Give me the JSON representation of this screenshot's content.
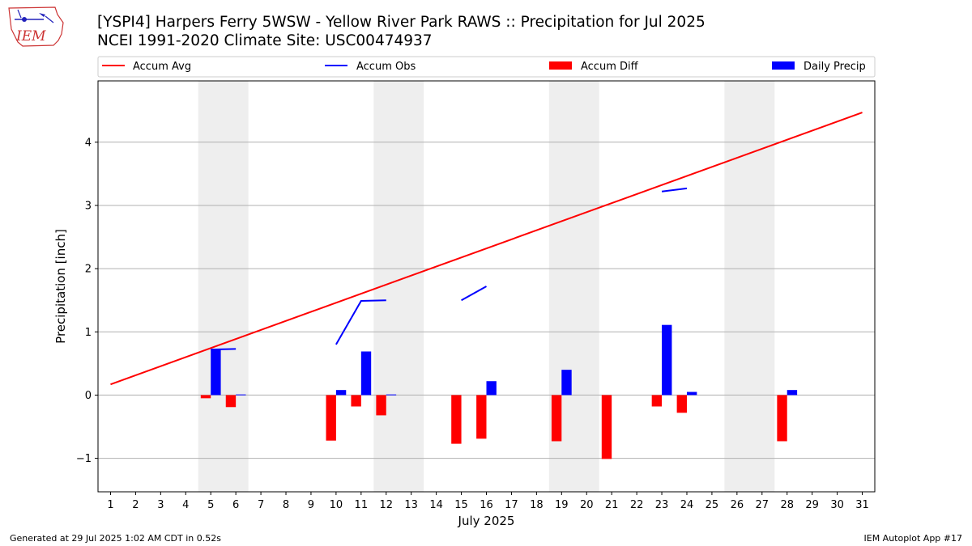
{
  "header": {
    "title_line1": "[YSPI4] Harpers Ferry 5WSW - Yellow River Park RAWS :: Precipitation for Jul 2025",
    "title_line2": "NCEI 1991-2020 Climate Site: USC00474937",
    "logo_text": "IEM"
  },
  "footer": {
    "left": "Generated at 29 Jul 2025 1:02 AM CDT in 0.52s",
    "right": "IEM Autoplot App #17"
  },
  "colors": {
    "accum_avg": "#ff0000",
    "accum_obs": "#0000ff",
    "accum_diff": "#ff0000",
    "daily_precip": "#0000ff",
    "weekend_shade": "#eeeeee",
    "grid": "#b0b0b0"
  },
  "chart_data": {
    "type": "bar",
    "xlabel": "July 2025",
    "ylabel": "Precipitation [inch]",
    "xlim": [
      0.5,
      31.5
    ],
    "ylim": [
      -1.53,
      4.97
    ],
    "yticks": [
      -1,
      0,
      1,
      2,
      3,
      4
    ],
    "ytick_labels": [
      "−1",
      "0",
      "1",
      "2",
      "3",
      "4"
    ],
    "grid": "horizontal",
    "legend_position": "top",
    "legend": [
      "Accum Avg",
      "Accum Obs",
      "Accum Diff",
      "Daily Precip"
    ],
    "days": [
      1,
      2,
      3,
      4,
      5,
      6,
      7,
      8,
      9,
      10,
      11,
      12,
      13,
      14,
      15,
      16,
      17,
      18,
      19,
      20,
      21,
      22,
      23,
      24,
      25,
      26,
      27,
      28,
      29,
      30,
      31
    ],
    "weekend_spans": [
      [
        4.5,
        6.5
      ],
      [
        11.5,
        13.5
      ],
      [
        18.5,
        20.5
      ],
      [
        25.5,
        27.5
      ]
    ],
    "series": [
      {
        "name": "Accum Avg",
        "kind": "line",
        "x": [
          1,
          31
        ],
        "values": [
          0.17,
          4.47
        ]
      },
      {
        "name": "Accum Obs",
        "kind": "line",
        "segments": [
          {
            "x": [
              5,
              6
            ],
            "values": [
              0.72,
              0.73
            ]
          },
          {
            "x": [
              10,
              11,
              12
            ],
            "values": [
              0.8,
              1.49,
              1.5
            ]
          },
          {
            "x": [
              15,
              16
            ],
            "values": [
              1.5,
              1.72
            ]
          },
          {
            "x": [
              23,
              24
            ],
            "values": [
              3.22,
              3.27
            ]
          }
        ]
      },
      {
        "name": "Accum Diff",
        "kind": "bar",
        "x": [
          5,
          6,
          10,
          11,
          12,
          15,
          16,
          19,
          21,
          23,
          24,
          28
        ],
        "values": [
          -0.05,
          -0.19,
          -0.72,
          -0.18,
          -0.32,
          -0.77,
          -0.69,
          -0.73,
          -1.01,
          -0.18,
          -0.28,
          -0.73
        ]
      },
      {
        "name": "Daily Precip",
        "kind": "bar",
        "x": [
          5,
          6,
          10,
          11,
          12,
          16,
          19,
          23,
          24,
          28
        ],
        "values": [
          0.72,
          0.01,
          0.08,
          0.69,
          0.01,
          0.22,
          0.4,
          1.11,
          0.05,
          0.08
        ]
      }
    ]
  }
}
